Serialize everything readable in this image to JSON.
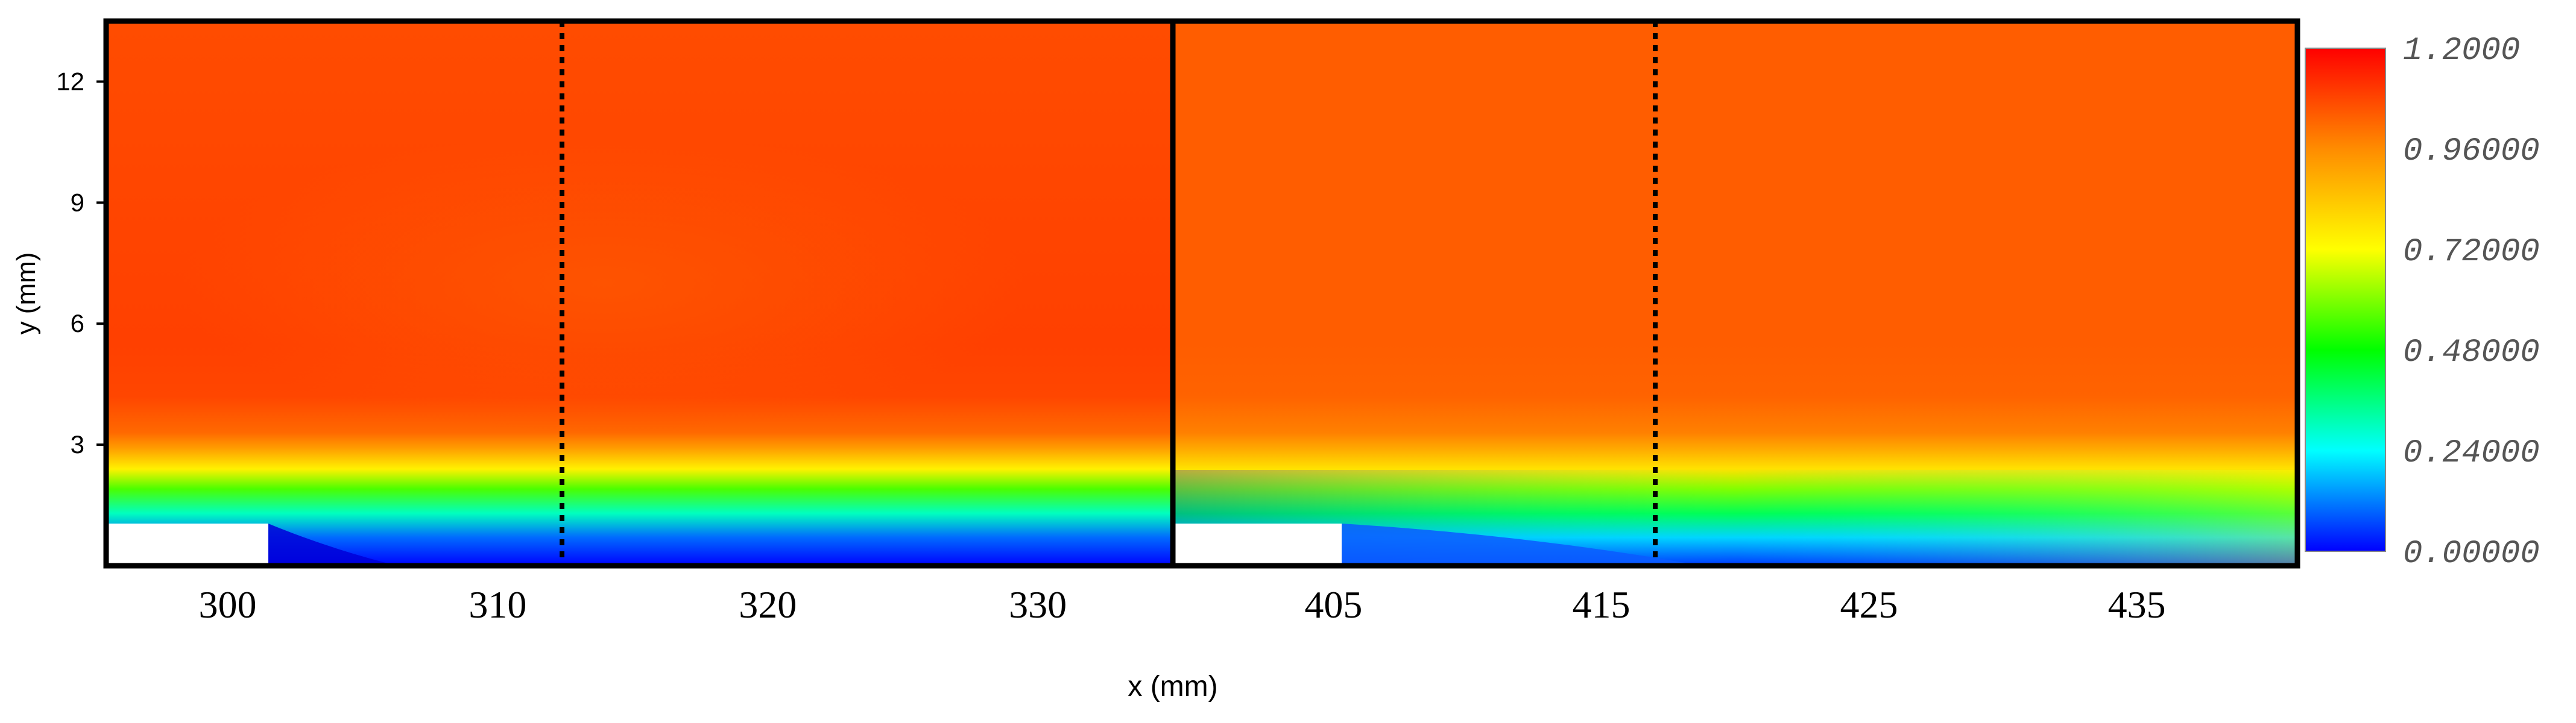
{
  "chart_data": {
    "type": "heatmap",
    "title": "",
    "xlabel": "x (mm)",
    "ylabel": "y (mm)",
    "ylim": [
      0,
      13.5
    ],
    "y_ticks": [
      3,
      6,
      9,
      12
    ],
    "grid": false,
    "panels": [
      {
        "name": "left-panel",
        "xlim": [
          295.5,
          335
        ],
        "x_ticks": [
          300,
          310,
          320,
          330
        ],
        "dashed_line_x": 312,
        "step_block": {
          "x_start": 295.5,
          "x_end": 301.5,
          "y_top": 1.1
        },
        "field_profile": {
          "y": [
            0,
            0.7,
            1.3,
            1.9,
            2.4,
            2.9,
            3.3,
            4.2,
            5.5,
            13.5
          ],
          "value": [
            0.0,
            0.1,
            0.3,
            0.55,
            0.75,
            0.92,
            1.02,
            1.08,
            1.09,
            1.07
          ]
        }
      },
      {
        "name": "right-panel",
        "xlim": [
          399,
          441
        ],
        "x_ticks": [
          405,
          415,
          425,
          435
        ],
        "dashed_line_x": 417,
        "step_block": {
          "x_start": 399,
          "x_end": 405,
          "y_top": 1.1
        },
        "field_profile": {
          "y": [
            0,
            0.7,
            1.3,
            1.9,
            2.4,
            2.9,
            3.3,
            4.2,
            5.5,
            13.5
          ],
          "value": [
            0.05,
            0.2,
            0.4,
            0.6,
            0.78,
            0.9,
            0.98,
            1.03,
            1.04,
            1.04
          ]
        }
      }
    ],
    "colorbar": {
      "min": 0.0,
      "max": 1.2,
      "tick_labels": [
        "1.2000",
        "0.96000",
        "0.72000",
        "0.48000",
        "0.24000",
        "0.00000"
      ],
      "colors": [
        "#0000ff",
        "#00ffff",
        "#00ff00",
        "#ffff00",
        "#ff8c00",
        "#ff0000"
      ]
    }
  }
}
